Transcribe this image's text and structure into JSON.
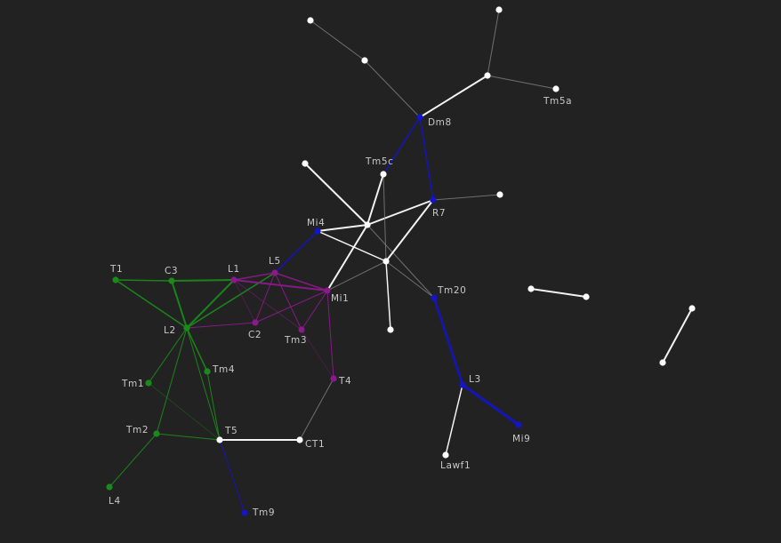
{
  "colors": {
    "background": "#222222",
    "white": "#ffffff",
    "gray": "#8a8a8a",
    "green": "#1a8a1a",
    "purple": "#8a1a8a",
    "blue": "#1414c8",
    "label": "#c8c8c8"
  },
  "nodes": [
    {
      "id": "n_top1",
      "label": "",
      "color": "white"
    },
    {
      "id": "n_top2",
      "label": "",
      "color": "white"
    },
    {
      "id": "n_top3",
      "label": "",
      "color": "white"
    },
    {
      "id": "n_hub_top",
      "label": "",
      "color": "white"
    },
    {
      "id": "Tm5a",
      "label": "Tm5a",
      "color": "white"
    },
    {
      "id": "Dm8",
      "label": "Dm8",
      "color": "blue"
    },
    {
      "id": "n_left_hub",
      "label": "",
      "color": "white"
    },
    {
      "id": "Tm5c",
      "label": "Tm5c",
      "color": "white"
    },
    {
      "id": "n_r7_tail",
      "label": "",
      "color": "white"
    },
    {
      "id": "R7",
      "label": "R7",
      "color": "blue"
    },
    {
      "id": "Mi4",
      "label": "Mi4",
      "color": "blue"
    },
    {
      "id": "n_x1",
      "label": "",
      "color": "white"
    },
    {
      "id": "n_x2",
      "label": "",
      "color": "white"
    },
    {
      "id": "n_bot_w",
      "label": "",
      "color": "white"
    },
    {
      "id": "Tm20",
      "label": "Tm20",
      "color": "blue"
    },
    {
      "id": "L3",
      "label": "L3",
      "color": "blue"
    },
    {
      "id": "Mi9",
      "label": "Mi9",
      "color": "blue"
    },
    {
      "id": "Lawf1",
      "label": "Lawf1",
      "color": "white"
    },
    {
      "id": "n_iso1a",
      "label": "",
      "color": "white"
    },
    {
      "id": "n_iso1b",
      "label": "",
      "color": "white"
    },
    {
      "id": "n_iso2a",
      "label": "",
      "color": "white"
    },
    {
      "id": "n_iso2b",
      "label": "",
      "color": "white"
    },
    {
      "id": "T1",
      "label": "T1",
      "color": "green"
    },
    {
      "id": "C3",
      "label": "C3",
      "color": "green"
    },
    {
      "id": "L1",
      "label": "L1",
      "color": "purple"
    },
    {
      "id": "L5",
      "label": "L5",
      "color": "purple"
    },
    {
      "id": "Mi1",
      "label": "Mi1",
      "color": "purple"
    },
    {
      "id": "L2",
      "label": "L2",
      "color": "green"
    },
    {
      "id": "C2",
      "label": "C2",
      "color": "purple"
    },
    {
      "id": "Tm3",
      "label": "Tm3",
      "color": "purple"
    },
    {
      "id": "T4",
      "label": "T4",
      "color": "purple"
    },
    {
      "id": "Tm1",
      "label": "Tm1",
      "color": "green"
    },
    {
      "id": "Tm4",
      "label": "Tm4",
      "color": "green"
    },
    {
      "id": "Tm2",
      "label": "Tm2",
      "color": "green"
    },
    {
      "id": "T5",
      "label": "T5",
      "color": "white"
    },
    {
      "id": "CT1",
      "label": "CT1",
      "color": "white"
    },
    {
      "id": "L4",
      "label": "L4",
      "color": "green"
    },
    {
      "id": "Tm9",
      "label": "Tm9",
      "color": "blue"
    }
  ],
  "edges": [
    {
      "from": "n_top1",
      "to": "n_top2",
      "color": "gray",
      "weight": 1
    },
    {
      "from": "n_top2",
      "to": "Dm8",
      "color": "gray",
      "weight": 1
    },
    {
      "from": "n_top3",
      "to": "n_hub_top",
      "color": "gray",
      "weight": 1
    },
    {
      "from": "n_hub_top",
      "to": "Tm5a",
      "color": "gray",
      "weight": 1
    },
    {
      "from": "n_hub_top",
      "to": "Dm8",
      "color": "white",
      "weight": 2
    },
    {
      "from": "Dm8",
      "to": "R7",
      "color": "blue",
      "weight": 1.5
    },
    {
      "from": "Dm8",
      "to": "Tm5c",
      "color": "blue",
      "weight": 1.5
    },
    {
      "from": "R7",
      "to": "n_r7_tail",
      "color": "gray",
      "weight": 1
    },
    {
      "from": "n_left_hub",
      "to": "n_x1",
      "color": "white",
      "weight": 2
    },
    {
      "from": "n_x1",
      "to": "Tm5c",
      "color": "white",
      "weight": 2
    },
    {
      "from": "n_x1",
      "to": "R7",
      "color": "white",
      "weight": 2
    },
    {
      "from": "n_x1",
      "to": "Mi1",
      "color": "white",
      "weight": 2
    },
    {
      "from": "n_x1",
      "to": "Tm20",
      "color": "gray",
      "weight": 1
    },
    {
      "from": "Mi4",
      "to": "n_x1",
      "color": "white",
      "weight": 2
    },
    {
      "from": "Mi4",
      "to": "n_x2",
      "color": "white",
      "weight": 1.5
    },
    {
      "from": "R7",
      "to": "n_x2",
      "color": "white",
      "weight": 2
    },
    {
      "from": "Tm5c",
      "to": "n_x2",
      "color": "gray",
      "weight": 1
    },
    {
      "from": "n_x2",
      "to": "n_bot_w",
      "color": "white",
      "weight": 1.5
    },
    {
      "from": "n_x2",
      "to": "Mi1",
      "color": "gray",
      "weight": 1
    },
    {
      "from": "n_x2",
      "to": "Tm20",
      "color": "gray",
      "weight": 1
    },
    {
      "from": "Mi4",
      "to": "L5",
      "color": "blue",
      "weight": 1.5
    },
    {
      "from": "Tm20",
      "to": "L3",
      "color": "blue",
      "weight": 2.5
    },
    {
      "from": "L3",
      "to": "Mi9",
      "color": "blue",
      "weight": 3
    },
    {
      "from": "L3",
      "to": "Lawf1",
      "color": "white",
      "weight": 1.5
    },
    {
      "from": "n_iso1a",
      "to": "n_iso1b",
      "color": "white",
      "weight": 2
    },
    {
      "from": "n_iso2a",
      "to": "n_iso2b",
      "color": "white",
      "weight": 2
    },
    {
      "from": "T1",
      "to": "C3",
      "color": "green",
      "weight": 1.5
    },
    {
      "from": "T1",
      "to": "L2",
      "color": "green",
      "weight": 1.5
    },
    {
      "from": "C3",
      "to": "L1",
      "color": "green",
      "weight": 2
    },
    {
      "from": "C3",
      "to": "L2",
      "color": "green",
      "weight": 2
    },
    {
      "from": "L2",
      "to": "L1",
      "color": "green",
      "weight": 2
    },
    {
      "from": "L2",
      "to": "L5",
      "color": "green",
      "weight": 1.5
    },
    {
      "from": "L2",
      "to": "Tm1",
      "color": "green",
      "weight": 1
    },
    {
      "from": "L2",
      "to": "Tm4",
      "color": "green",
      "weight": 1.5
    },
    {
      "from": "L2",
      "to": "Tm2",
      "color": "green",
      "weight": 1
    },
    {
      "from": "L2",
      "to": "T5",
      "color": "green",
      "weight": 1
    },
    {
      "from": "L2",
      "to": "C2",
      "color": "purple",
      "weight": 1
    },
    {
      "from": "Tm4",
      "to": "T5",
      "color": "green",
      "weight": 1
    },
    {
      "from": "Tm1",
      "to": "T5",
      "color": "green",
      "weight": 0.6
    },
    {
      "from": "Tm2",
      "to": "T5",
      "color": "green",
      "weight": 1
    },
    {
      "from": "Tm2",
      "to": "L4",
      "color": "green",
      "weight": 1
    },
    {
      "from": "T5",
      "to": "CT1",
      "color": "white",
      "weight": 2
    },
    {
      "from": "T5",
      "to": "Tm9",
      "color": "blue",
      "weight": 1
    },
    {
      "from": "CT1",
      "to": "T4",
      "color": "gray",
      "weight": 1
    },
    {
      "from": "L1",
      "to": "L5",
      "color": "purple",
      "weight": 1.5
    },
    {
      "from": "L1",
      "to": "Mi1",
      "color": "purple",
      "weight": 2
    },
    {
      "from": "L1",
      "to": "C2",
      "color": "purple",
      "weight": 0.8
    },
    {
      "from": "L1",
      "to": "Tm3",
      "color": "purple",
      "weight": 0.8
    },
    {
      "from": "L5",
      "to": "Mi1",
      "color": "purple",
      "weight": 1.5
    },
    {
      "from": "L5",
      "to": "C2",
      "color": "purple",
      "weight": 1
    },
    {
      "from": "L5",
      "to": "Tm3",
      "color": "purple",
      "weight": 1
    },
    {
      "from": "C2",
      "to": "Mi1",
      "color": "purple",
      "weight": 1
    },
    {
      "from": "Tm3",
      "to": "Mi1",
      "color": "purple",
      "weight": 1
    },
    {
      "from": "Tm3",
      "to": "T4",
      "color": "purple",
      "weight": 0.6
    },
    {
      "from": "Mi1",
      "to": "T4",
      "color": "purple",
      "weight": 1
    }
  ]
}
